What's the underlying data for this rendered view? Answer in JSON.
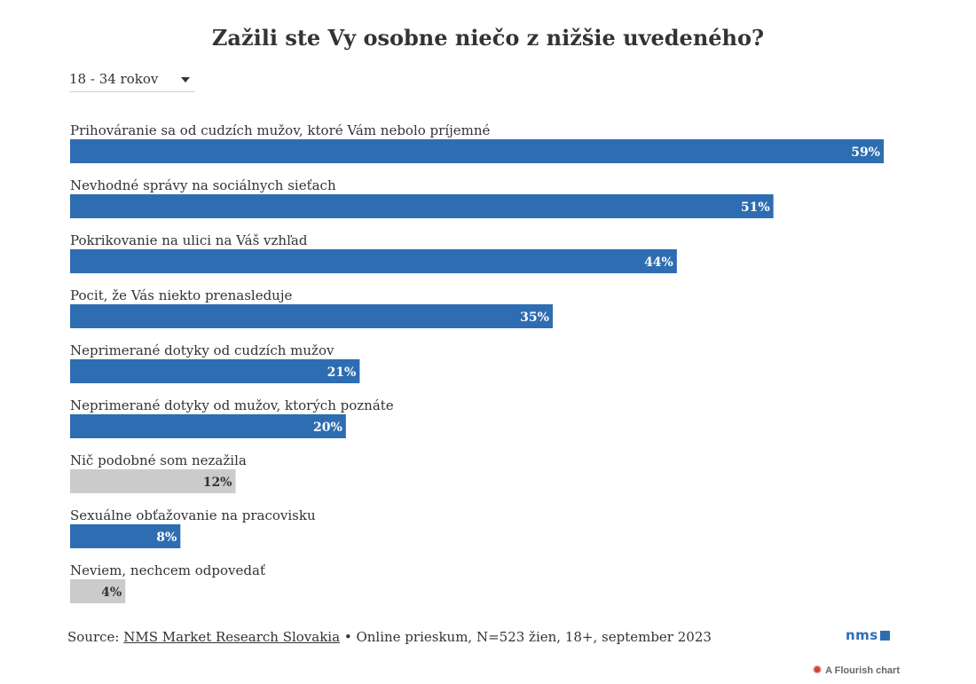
{
  "title": "Zažili ste Vy osobne niečo z nižšie uvedeného?",
  "filter": {
    "selected": "18 - 34 rokov"
  },
  "colors": {
    "primary": "#2e6db2",
    "neutral": "#cbcbcb"
  },
  "chart_data": {
    "type": "bar",
    "orientation": "horizontal",
    "title": "Zažili ste Vy osobne niečo z nižšie uvedeného?",
    "categories": [
      "Prihováranie sa od cudzích mužov, ktoré Vám nebolo príjemné",
      "Nevhodné správy na sociálnych sieťach",
      "Pokrikovanie na ulici na Váš vzhľad",
      "Pocit, že Vás niekto prenasleduje",
      "Neprimerané dotyky od cudzích mužov",
      "Neprimerané dotyky od mužov, ktorých poznáte",
      "Nič podobné som nezažila",
      "Sexuálne obťažovanie na pracovisku",
      "Neviem, nechcem odpovedať"
    ],
    "values": [
      59,
      51,
      44,
      35,
      21,
      20,
      12,
      8,
      4
    ],
    "value_labels": [
      "59%",
      "51%",
      "44%",
      "35%",
      "21%",
      "20%",
      "12%",
      "8%",
      "4%"
    ],
    "highlight": [
      true,
      true,
      true,
      true,
      true,
      true,
      false,
      true,
      false
    ],
    "unit": "%",
    "xlim": [
      0,
      59
    ],
    "grid": false
  },
  "footer": {
    "source_prefix": "Source: ",
    "source_link": "NMS Market Research Slovakia",
    "source_rest": " • Online prieskum, N=523 žien, 18+, september 2023"
  },
  "logo": {
    "text": "nms"
  },
  "flourish": {
    "icon": "flourish-icon",
    "text": "A Flourish chart"
  }
}
